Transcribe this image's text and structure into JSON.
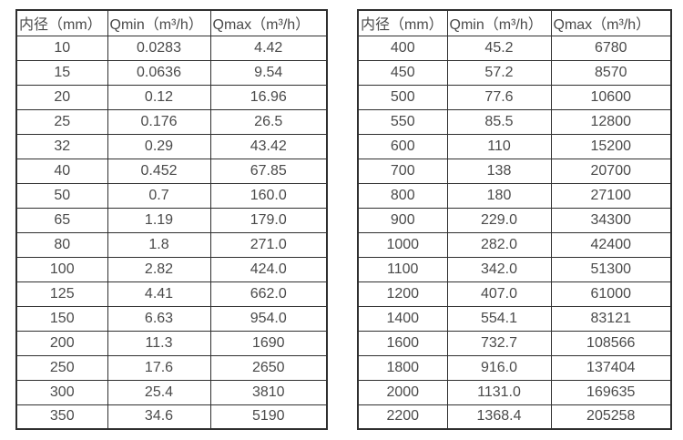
{
  "colors": {
    "border": "#2f2f2f",
    "text": "#4a4a4a",
    "background": "#ffffff"
  },
  "tables": [
    {
      "name": "small-diameter-flow-ranges",
      "headers": [
        "内径（mm）",
        "Qmin（m³/h）",
        "Qmax（m³/h）"
      ],
      "rows": [
        [
          "10",
          "0.0283",
          "4.42"
        ],
        [
          "15",
          "0.0636",
          "9.54"
        ],
        [
          "20",
          "0.12",
          "16.96"
        ],
        [
          "25",
          "0.176",
          "26.5"
        ],
        [
          "32",
          "0.29",
          "43.42"
        ],
        [
          "40",
          "0.452",
          "67.85"
        ],
        [
          "50",
          "0.7",
          "160.0"
        ],
        [
          "65",
          "1.19",
          "179.0"
        ],
        [
          "80",
          "1.8",
          "271.0"
        ],
        [
          "100",
          "2.82",
          "424.0"
        ],
        [
          "125",
          "4.41",
          "662.0"
        ],
        [
          "150",
          "6.63",
          "954.0"
        ],
        [
          "200",
          "11.3",
          "1690"
        ],
        [
          "250",
          "17.6",
          "2650"
        ],
        [
          "300",
          "25.4",
          "3810"
        ],
        [
          "350",
          "34.6",
          "5190"
        ]
      ]
    },
    {
      "name": "large-diameter-flow-ranges",
      "headers": [
        "内径（mm）",
        "Qmin（m³/h）",
        "Qmax（m³/h）"
      ],
      "rows": [
        [
          "400",
          "45.2",
          "6780"
        ],
        [
          "450",
          "57.2",
          "8570"
        ],
        [
          "500",
          "77.6",
          "10600"
        ],
        [
          "550",
          "85.5",
          "12800"
        ],
        [
          "600",
          "110",
          "15200"
        ],
        [
          "700",
          "138",
          "20700"
        ],
        [
          "800",
          "180",
          "27100"
        ],
        [
          "900",
          "229.0",
          "34300"
        ],
        [
          "1000",
          "282.0",
          "42400"
        ],
        [
          "1100",
          "342.0",
          "51300"
        ],
        [
          "1200",
          "407.0",
          "61000"
        ],
        [
          "1400",
          "554.1",
          "83121"
        ],
        [
          "1600",
          "732.7",
          "108566"
        ],
        [
          "1800",
          "916.0",
          "137404"
        ],
        [
          "2000",
          "1131.0",
          "169635"
        ],
        [
          "2200",
          "1368.4",
          "205258"
        ]
      ]
    }
  ]
}
